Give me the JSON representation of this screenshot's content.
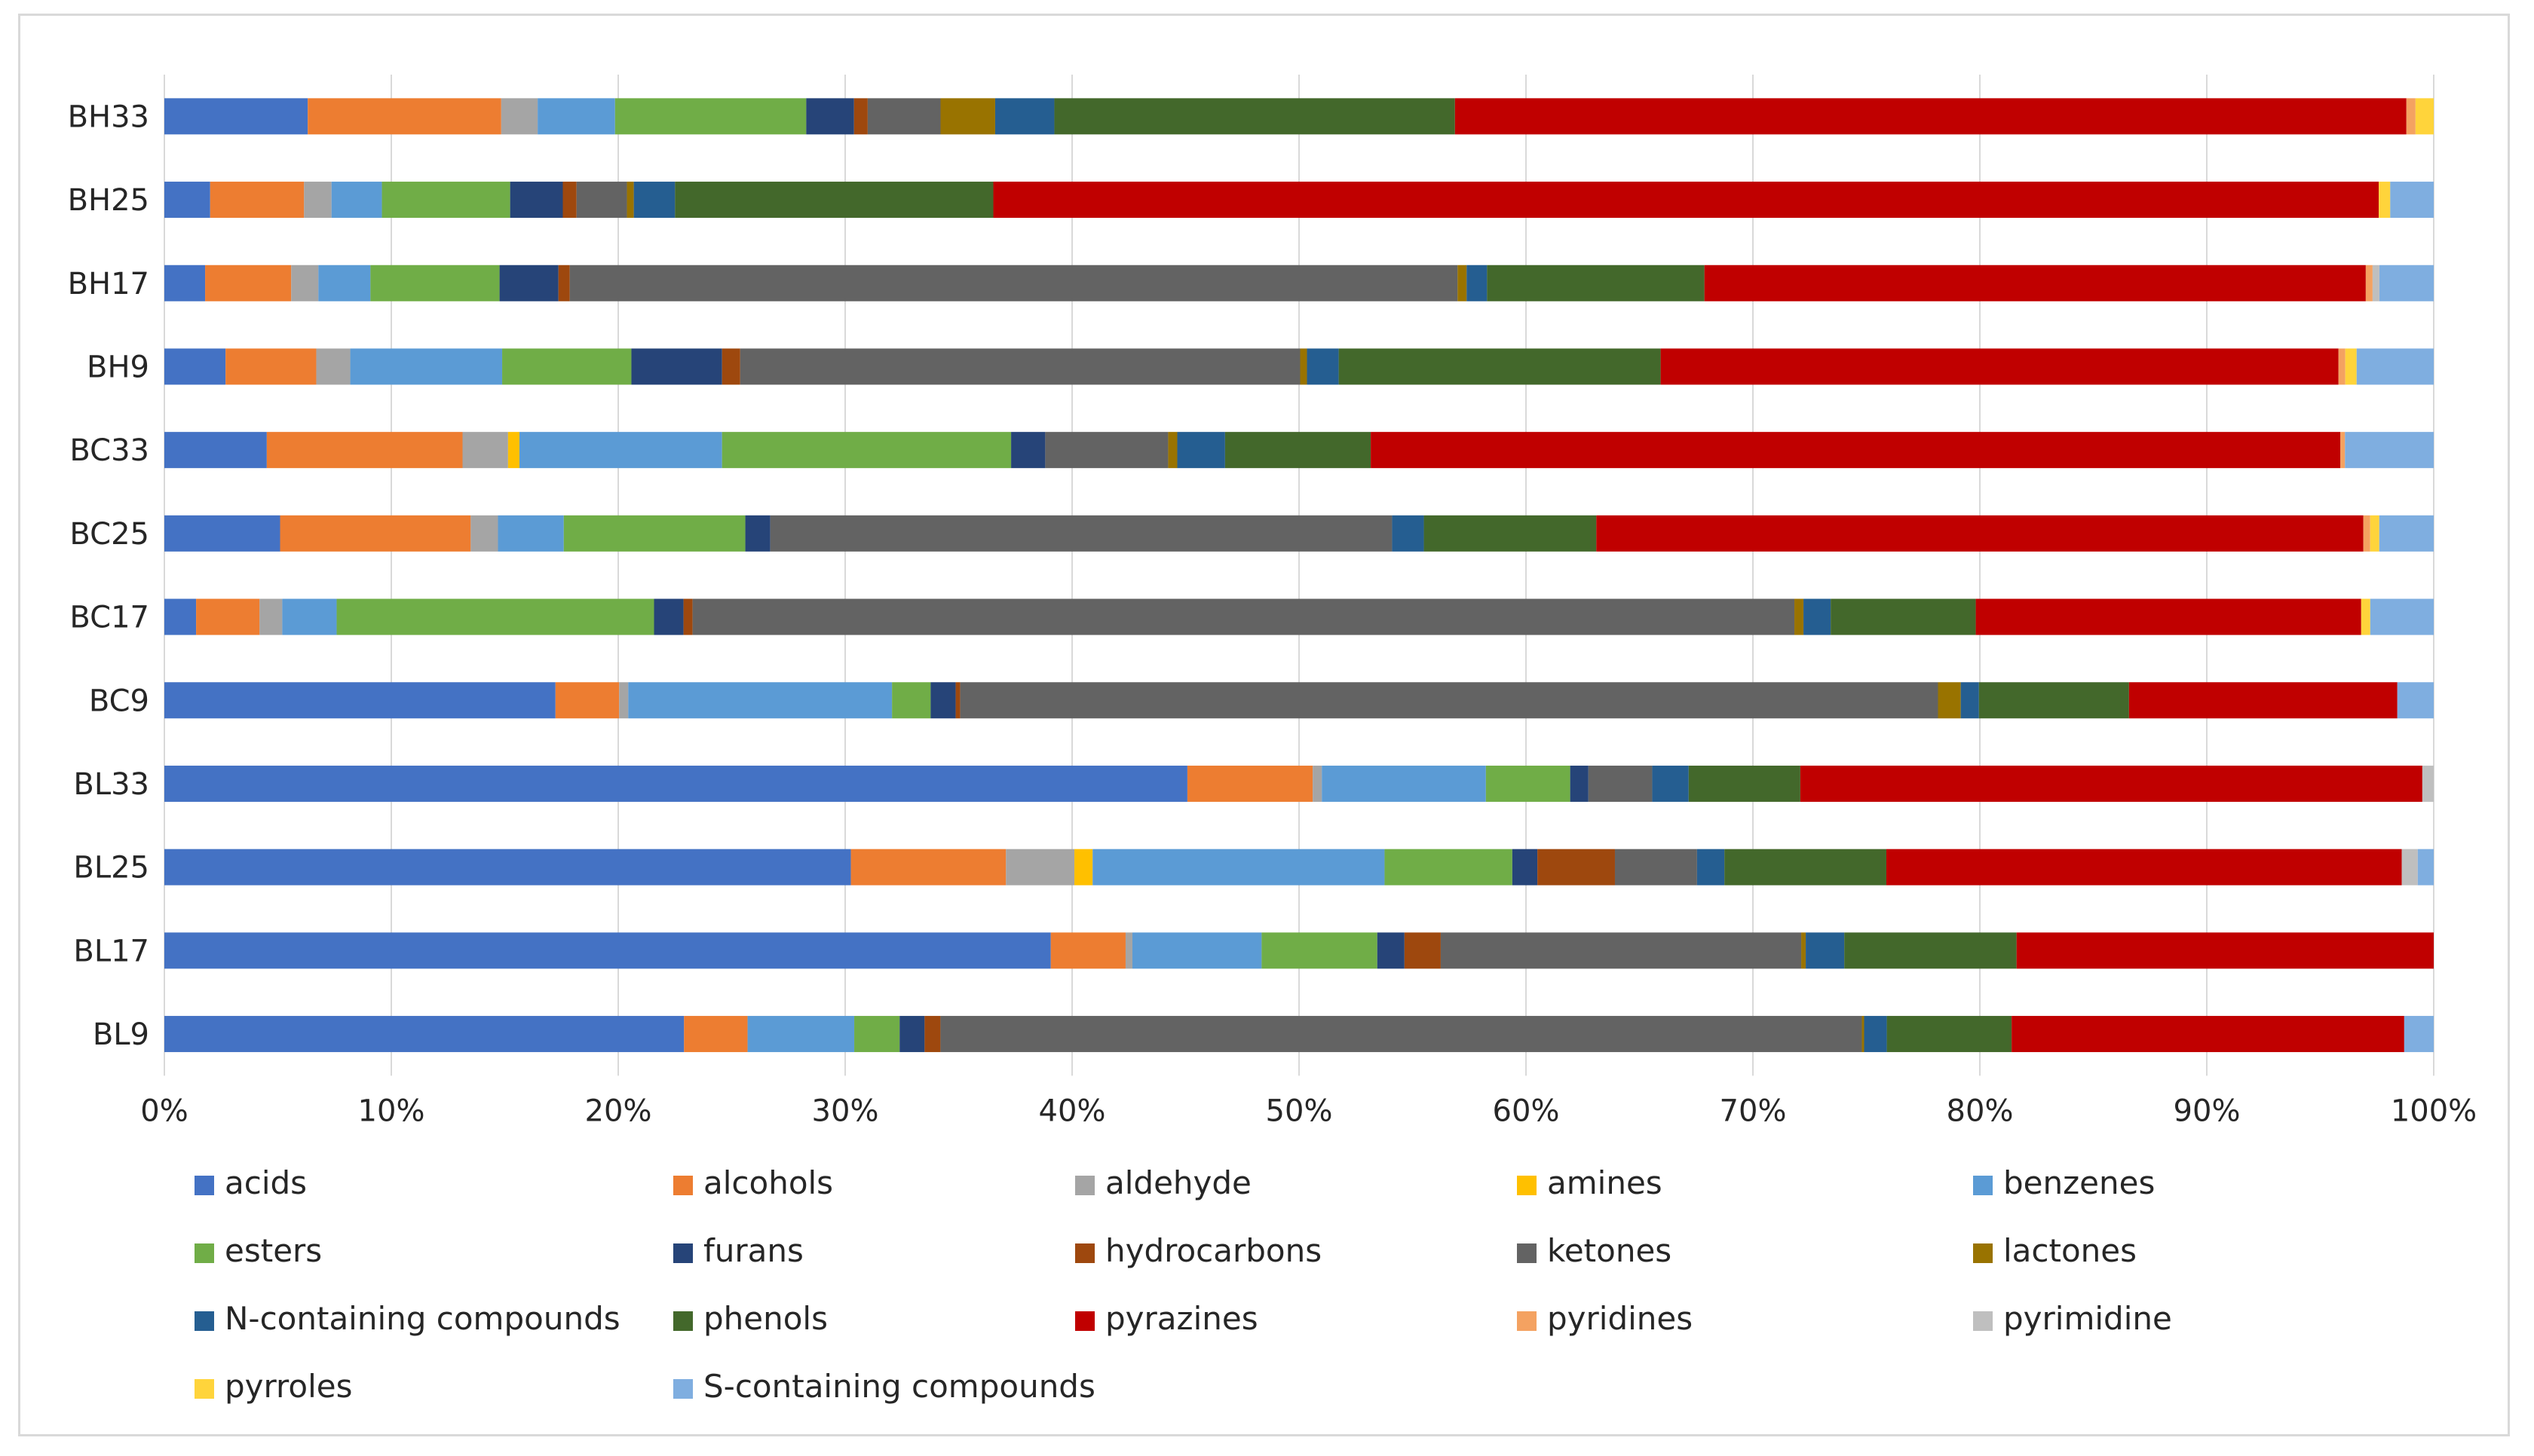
{
  "chart_data": {
    "type": "bar",
    "orientation": "horizontal",
    "stacked": "percent",
    "title": "",
    "xlabel": "",
    "ylabel": "",
    "xlim": [
      0,
      100
    ],
    "grid": true,
    "legend_position": "bottom",
    "x_ticks": [
      "0%",
      "10%",
      "20%",
      "30%",
      "40%",
      "50%",
      "60%",
      "70%",
      "80%",
      "90%",
      "100%"
    ],
    "categories": [
      "BH33",
      "BH25",
      "BH17",
      "BH9",
      "BC33",
      "BC25",
      "BC17",
      "BC9",
      "BL33",
      "BL25",
      "BL17",
      "BL9"
    ],
    "series": [
      {
        "name": "acids",
        "color": "#4472C4",
        "values": [
          6.3,
          2.0,
          1.8,
          2.7,
          4.5,
          5.1,
          1.4,
          17.2,
          44.9,
          30.1,
          39.1,
          22.9
        ]
      },
      {
        "name": "alcohols",
        "color": "#ED7D31",
        "values": [
          8.5,
          4.1,
          3.8,
          4.0,
          8.6,
          8.4,
          2.8,
          2.8,
          5.5,
          6.8,
          3.3,
          2.8
        ]
      },
      {
        "name": "aldehyde",
        "color": "#A5A5A5",
        "values": [
          1.6,
          1.2,
          1.2,
          1.5,
          2.0,
          1.2,
          1.0,
          0.4,
          0.4,
          3.0,
          0.3,
          0
        ]
      },
      {
        "name": "amines",
        "color": "#FFC000",
        "values": [
          0,
          0,
          0,
          0,
          0.5,
          0,
          0,
          0,
          0,
          0.8,
          0,
          0
        ]
      },
      {
        "name": "benzenes",
        "color": "#5B9BD5",
        "values": [
          3.4,
          2.2,
          2.3,
          6.7,
          8.9,
          2.9,
          2.4,
          11.6,
          7.2,
          12.8,
          5.7,
          4.7
        ]
      },
      {
        "name": "esters",
        "color": "#70AD47",
        "values": [
          8.4,
          5.6,
          5.7,
          5.7,
          12.7,
          8.0,
          14.0,
          1.7,
          3.7,
          5.6,
          5.1,
          2.0
        ]
      },
      {
        "name": "furans",
        "color": "#264478",
        "values": [
          2.1,
          2.3,
          2.6,
          4.0,
          1.5,
          1.1,
          1.3,
          1.1,
          0.8,
          1.1,
          1.2,
          1.1
        ]
      },
      {
        "name": "hydrocarbons",
        "color": "#9E480E",
        "values": [
          0.6,
          0.6,
          0.5,
          0.8,
          0,
          0,
          0.4,
          0.2,
          0,
          3.4,
          1.6,
          0.7
        ]
      },
      {
        "name": "ketones",
        "color": "#636363",
        "values": [
          3.2,
          2.2,
          39.2,
          24.7,
          5.4,
          27.4,
          48.6,
          43.0,
          2.8,
          3.6,
          15.9,
          40.6
        ]
      },
      {
        "name": "lactones",
        "color": "#997300",
        "values": [
          2.4,
          0.3,
          0.4,
          0.3,
          0.4,
          0,
          0.4,
          1.0,
          0,
          0,
          0.2,
          0.1
        ]
      },
      {
        "name": "N-containing compounds",
        "color": "#255E91",
        "values": [
          2.6,
          1.8,
          0.9,
          1.4,
          2.1,
          1.4,
          1.2,
          0.8,
          1.6,
          1.2,
          1.7,
          1.0
        ]
      },
      {
        "name": "phenols",
        "color": "#43682B",
        "values": [
          17.6,
          13.9,
          9.6,
          14.2,
          6.4,
          7.6,
          6.4,
          6.6,
          4.9,
          7.1,
          7.6,
          5.5
        ]
      },
      {
        "name": "pyrazines",
        "color": "#C00000",
        "values": [
          41.8,
          60.5,
          29.2,
          29.9,
          42.6,
          33.8,
          17.0,
          11.8,
          27.3,
          22.6,
          18.4,
          17.3
        ]
      },
      {
        "name": "pyridines",
        "color": "#F4A261",
        "values": [
          0.4,
          0,
          0.3,
          0.3,
          0.2,
          0.3,
          0,
          0,
          0,
          0,
          0,
          0
        ]
      },
      {
        "name": "pyrimidine",
        "color": "#BFBFBF",
        "values": [
          0,
          0,
          0.3,
          0,
          0,
          0,
          0,
          0,
          0.5,
          0.7,
          0,
          0
        ]
      },
      {
        "name": "pyrroles",
        "color": "#FFD43B",
        "values": [
          0.8,
          0.5,
          0,
          0.5,
          0,
          0.4,
          0.4,
          0,
          0,
          0,
          0,
          0
        ]
      },
      {
        "name": "S-containing compounds",
        "color": "#7FAEE0",
        "values": [
          0,
          1.9,
          2.4,
          3.4,
          3.9,
          2.4,
          2.8,
          1.6,
          0,
          0.7,
          0,
          1.3
        ]
      }
    ]
  }
}
